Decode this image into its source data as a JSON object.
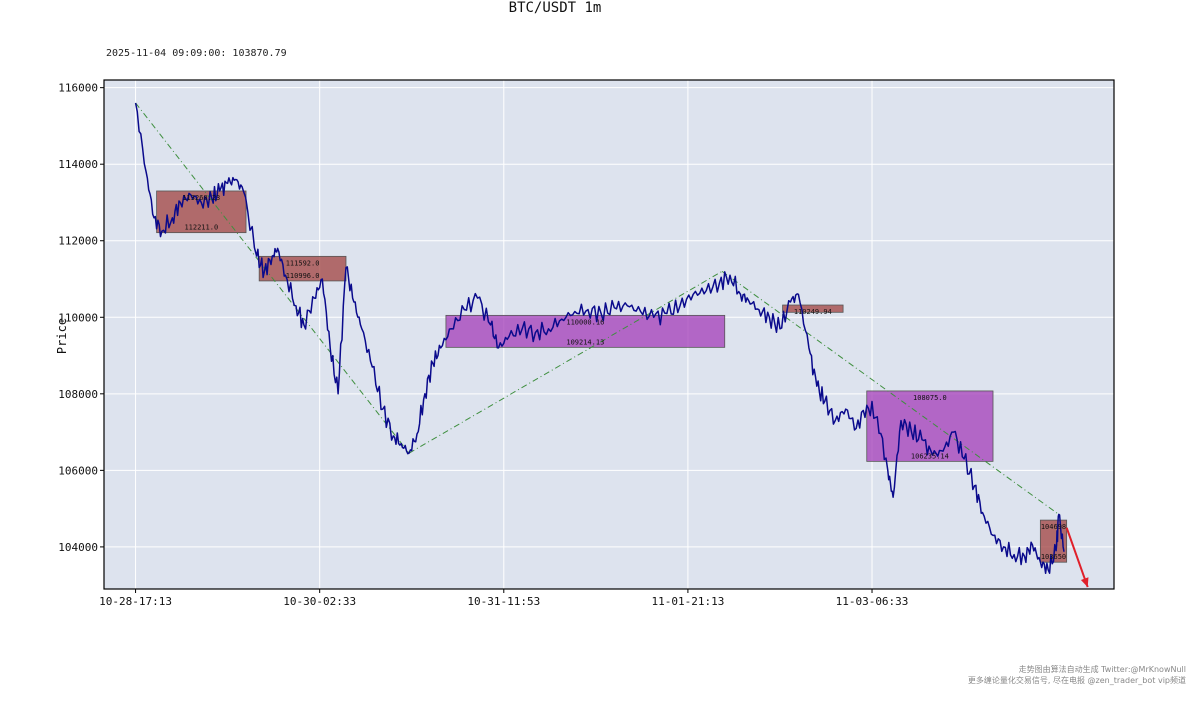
{
  "title": "BTC/USDT 1m",
  "last_price_label": "2025-11-04 09:09:00: 103870.79",
  "footer": {
    "line1": "走势图由算法自动生成  Twitter:@MrKnowNull",
    "line2": "更多缠论量化交易信号, 尽在电报 @zen_trader_bot vip频道"
  },
  "colors": {
    "background": "#dde3ee",
    "price_line": "#0a0a8c",
    "zhongshu_red": "#a0413f",
    "zhongshu_purple": "#a33cb8",
    "trend_line": "#3f8f3f",
    "arrow": "#e0202a"
  },
  "chart_data": {
    "type": "line",
    "title": "BTC/USDT 1m",
    "xlabel": "",
    "ylabel": "Price",
    "ylim": [
      102900,
      116200
    ],
    "yticks": [
      104000,
      106000,
      108000,
      110000,
      112000,
      114000,
      116000
    ],
    "xticks": [
      "10-28-17:13",
      "10-30-02:33",
      "10-31-11:53",
      "11-01-21:13",
      "11-03-06:33"
    ],
    "grid": true,
    "series": [
      {
        "points": [
          [
            0,
            115600
          ],
          [
            40,
            113800
          ],
          [
            70,
            112600
          ],
          [
            100,
            112250
          ],
          [
            140,
            112600
          ],
          [
            170,
            113000
          ],
          [
            210,
            113200
          ],
          [
            250,
            113000
          ],
          [
            290,
            113100
          ],
          [
            320,
            113300
          ],
          [
            350,
            113500
          ],
          [
            380,
            113600
          ],
          [
            410,
            113300
          ],
          [
            460,
            111600
          ],
          [
            490,
            111200
          ],
          [
            520,
            111600
          ],
          [
            540,
            111800
          ],
          [
            570,
            111100
          ],
          [
            610,
            110300
          ],
          [
            640,
            109800
          ],
          [
            680,
            110500
          ],
          [
            710,
            111000
          ],
          [
            740,
            109200
          ],
          [
            770,
            108000
          ],
          [
            800,
            111300
          ],
          [
            830,
            110400
          ],
          [
            860,
            109700
          ],
          [
            900,
            108700
          ],
          [
            940,
            107600
          ],
          [
            980,
            106900
          ],
          [
            1010,
            106700
          ],
          [
            1040,
            106450
          ],
          [
            1070,
            106950
          ],
          [
            1100,
            108000
          ],
          [
            1130,
            108800
          ],
          [
            1160,
            109200
          ],
          [
            1200,
            109700
          ],
          [
            1250,
            110200
          ],
          [
            1300,
            110500
          ],
          [
            1350,
            109800
          ],
          [
            1380,
            109200
          ],
          [
            1420,
            109500
          ],
          [
            1470,
            109700
          ],
          [
            1520,
            109600
          ],
          [
            1570,
            109700
          ],
          [
            1620,
            109950
          ],
          [
            1670,
            110150
          ],
          [
            1720,
            110200
          ],
          [
            1770,
            110100
          ],
          [
            1820,
            110250
          ],
          [
            1870,
            110300
          ],
          [
            1920,
            110150
          ],
          [
            1970,
            110000
          ],
          [
            2020,
            110100
          ],
          [
            2070,
            110300
          ],
          [
            2120,
            110600
          ],
          [
            2170,
            110700
          ],
          [
            2220,
            110900
          ],
          [
            2260,
            111100
          ],
          [
            2300,
            110600
          ],
          [
            2330,
            110450
          ],
          [
            2370,
            110200
          ],
          [
            2410,
            110000
          ],
          [
            2450,
            109700
          ],
          [
            2490,
            110400
          ],
          [
            2520,
            110600
          ],
          [
            2560,
            109200
          ],
          [
            2590,
            108200
          ],
          [
            2620,
            107800
          ],
          [
            2660,
            107300
          ],
          [
            2700,
            107600
          ],
          [
            2740,
            107100
          ],
          [
            2780,
            107700
          ],
          [
            2820,
            107400
          ],
          [
            2860,
            106000
          ],
          [
            2880,
            105300
          ],
          [
            2910,
            107300
          ],
          [
            2950,
            107000
          ],
          [
            2990,
            106800
          ],
          [
            3030,
            106400
          ],
          [
            3070,
            106500
          ],
          [
            3110,
            107000
          ],
          [
            3150,
            106300
          ],
          [
            3190,
            105600
          ],
          [
            3220,
            104900
          ],
          [
            3260,
            104300
          ],
          [
            3300,
            104000
          ],
          [
            3340,
            103800
          ],
          [
            3380,
            103750
          ],
          [
            3410,
            104050
          ],
          [
            3440,
            103600
          ],
          [
            3470,
            103400
          ],
          [
            3500,
            103900
          ],
          [
            3510,
            104850
          ],
          [
            3530,
            103871
          ]
        ]
      }
    ],
    "trend_segments": [
      [
        [
          0,
          115600
        ],
        [
          1040,
          106450
        ]
      ],
      [
        [
          1040,
          106450
        ],
        [
          2230,
          111200
        ]
      ],
      [
        [
          2230,
          111200
        ],
        [
          3510,
          104850
        ]
      ]
    ],
    "zhongshu": [
      {
        "x0": 80,
        "x1": 420,
        "y_low": 112211.0,
        "y_high": 113300,
        "color": "red",
        "label_high": "113260.23",
        "label_low": "112211.0"
      },
      {
        "x0": 470,
        "x1": 800,
        "y_low": 110950,
        "y_high": 111592.0,
        "color": "red",
        "label_high": "111592.0",
        "label_low": "110996.0"
      },
      {
        "x0": 1180,
        "x1": 2240,
        "y_low": 109214.13,
        "y_high": 110050,
        "color": "purple",
        "label_high": "110000.16",
        "label_low": "109214.13"
      },
      {
        "x0": 2460,
        "x1": 2690,
        "y_low": 110130,
        "y_high": 110320,
        "color": "red",
        "label_high": "110249.94",
        "label_low": ""
      },
      {
        "x0": 2780,
        "x1": 3260,
        "y_low": 106235.14,
        "y_high": 108075.0,
        "color": "purple",
        "label_high": "108075.0",
        "label_low": "106235.14"
      },
      {
        "x0": 3440,
        "x1": 3540,
        "y_low": 103600,
        "y_high": 104700,
        "color": "red",
        "label_high": "104698",
        "label_low": "103650"
      }
    ],
    "forecast_arrow": {
      "from": [
        3540,
        104500
      ],
      "to": [
        3620,
        102950
      ]
    },
    "x_range": [
      -120,
      3720
    ],
    "x_tick_positions": [
      0,
      700,
      1400,
      2100,
      2800
    ]
  }
}
